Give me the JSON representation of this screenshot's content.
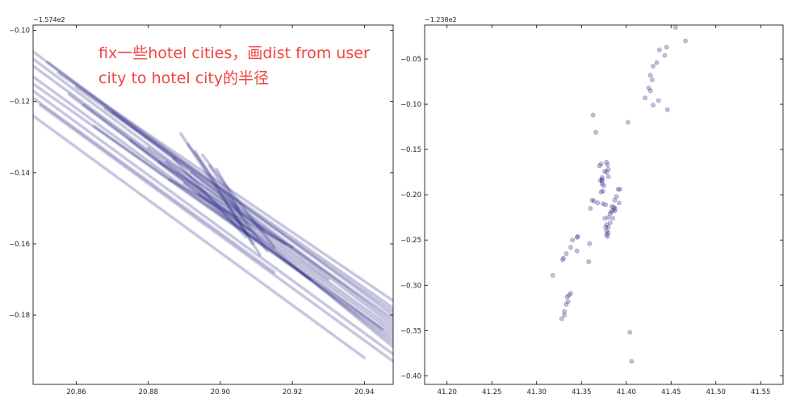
{
  "annotation": {
    "line1": "fix一些hotel cities，画dist from user",
    "line2": "city to hotel city的半径"
  },
  "chart_data": [
    {
      "type": "line",
      "title": "",
      "xlabel": "",
      "ylabel": "",
      "y_offset_label": "−1.574e2",
      "xlim": [
        20.848,
        20.948
      ],
      "ylim": [
        -0.1995,
        -0.0985
      ],
      "xticks": [
        20.86,
        20.88,
        20.9,
        20.92,
        20.94
      ],
      "xtick_labels": [
        "20.86",
        "20.88",
        "20.90",
        "20.92",
        "20.94"
      ],
      "yticks": [
        -0.1,
        -0.12,
        -0.14,
        -0.16,
        -0.18
      ],
      "ytick_labels": [
        "−0.10",
        "−0.12",
        "−0.14",
        "−0.16",
        "−0.18"
      ],
      "color": "#1c1c80",
      "grid": false,
      "description_note": "many faint dark-blue line segments trending downward",
      "series": [
        {
          "x": [
            20.848,
            20.948
          ],
          "y": [
            -0.106,
            -0.18
          ]
        },
        {
          "x": [
            20.848,
            20.948
          ],
          "y": [
            -0.11,
            -0.184
          ]
        },
        {
          "x": [
            20.848,
            20.948
          ],
          "y": [
            -0.113,
            -0.187
          ]
        },
        {
          "x": [
            20.848,
            20.948
          ],
          "y": [
            -0.117,
            -0.191
          ]
        },
        {
          "x": [
            20.85,
            20.948
          ],
          "y": [
            -0.121,
            -0.193
          ]
        },
        {
          "x": [
            20.848,
            20.94
          ],
          "y": [
            -0.124,
            -0.192
          ]
        },
        {
          "x": [
            20.855,
            20.948
          ],
          "y": [
            -0.112,
            -0.176
          ]
        },
        {
          "x": [
            20.86,
            20.948
          ],
          "y": [
            -0.116,
            -0.178
          ]
        },
        {
          "x": [
            20.848,
            20.93
          ],
          "y": [
            -0.108,
            -0.17
          ]
        },
        {
          "x": [
            20.852,
            20.948
          ],
          "y": [
            -0.109,
            -0.182
          ]
        },
        {
          "x": [
            20.87,
            20.948
          ],
          "y": [
            -0.123,
            -0.183
          ]
        },
        {
          "x": [
            20.848,
            20.925
          ],
          "y": [
            -0.115,
            -0.17
          ]
        },
        {
          "x": [
            20.865,
            20.948
          ],
          "y": [
            -0.127,
            -0.186
          ]
        },
        {
          "x": [
            20.88,
            20.948
          ],
          "y": [
            -0.133,
            -0.181
          ]
        },
        {
          "x": [
            20.875,
            20.948
          ],
          "y": [
            -0.131,
            -0.188
          ]
        },
        {
          "x": [
            20.848,
            20.915
          ],
          "y": [
            -0.119,
            -0.168
          ]
        },
        {
          "x": [
            20.885,
            20.948
          ],
          "y": [
            -0.137,
            -0.189
          ]
        },
        {
          "x": [
            20.858,
            20.945
          ],
          "y": [
            -0.118,
            -0.184
          ]
        },
        {
          "x": [
            20.862,
            20.948
          ],
          "y": [
            -0.121,
            -0.185
          ]
        },
        {
          "x": [
            20.868,
            20.948
          ],
          "y": [
            -0.122,
            -0.179
          ]
        },
        {
          "x": [
            20.889,
            20.911
          ],
          "y": [
            -0.129,
            -0.163
          ]
        },
        {
          "x": [
            20.891,
            20.913
          ],
          "y": [
            -0.132,
            -0.162
          ]
        },
        {
          "x": [
            20.893,
            20.909
          ],
          "y": [
            -0.134,
            -0.16
          ]
        },
        {
          "x": [
            20.887,
            20.907
          ],
          "y": [
            -0.136,
            -0.158
          ]
        },
        {
          "x": [
            20.895,
            20.915
          ],
          "y": [
            -0.135,
            -0.161
          ]
        },
        {
          "x": [
            20.897,
            20.906
          ],
          "y": [
            -0.138,
            -0.152
          ]
        },
        {
          "x": [
            20.899,
            20.905
          ],
          "y": [
            -0.139,
            -0.15
          ]
        },
        {
          "x": [
            20.892,
            20.912
          ],
          "y": [
            -0.14,
            -0.156
          ]
        },
        {
          "x": [
            20.89,
            20.91
          ],
          "y": [
            -0.143,
            -0.159
          ]
        },
        {
          "x": [
            20.894,
            20.908
          ],
          "y": [
            -0.146,
            -0.156
          ]
        },
        {
          "x": [
            20.883,
            20.918
          ],
          "y": [
            -0.137,
            -0.16
          ]
        },
        {
          "x": [
            20.886,
            20.92
          ],
          "y": [
            -0.142,
            -0.161
          ]
        }
      ]
    },
    {
      "type": "scatter",
      "title": "",
      "xlabel": "",
      "ylabel": "",
      "y_offset_label": "−1.238e2",
      "xlim": [
        41.175,
        41.575
      ],
      "ylim": [
        -0.4095,
        -0.0125
      ],
      "xticks": [
        41.2,
        41.25,
        41.3,
        41.35,
        41.4,
        41.45,
        41.5,
        41.55
      ],
      "xtick_labels": [
        "41.20",
        "41.25",
        "41.30",
        "41.35",
        "41.40",
        "41.45",
        "41.50",
        "41.55"
      ],
      "yticks": [
        -0.05,
        -0.1,
        -0.15,
        -0.2,
        -0.25,
        -0.3,
        -0.35,
        -0.4
      ],
      "ytick_labels": [
        "−0.05",
        "−0.10",
        "−0.15",
        "−0.20",
        "−0.25",
        "−0.30",
        "−0.35",
        "−0.40"
      ],
      "color": "#1c1c80",
      "grid": false,
      "points": [
        [
          41.455,
          -0.015
        ],
        [
          41.466,
          -0.03
        ],
        [
          41.445,
          -0.037
        ],
        [
          41.437,
          -0.04
        ],
        [
          41.443,
          -0.046
        ],
        [
          41.434,
          -0.054
        ],
        [
          41.43,
          -0.058
        ],
        [
          41.427,
          -0.068
        ],
        [
          41.429,
          -0.073
        ],
        [
          41.425,
          -0.082
        ],
        [
          41.427,
          -0.085
        ],
        [
          41.421,
          -0.093
        ],
        [
          41.436,
          -0.096
        ],
        [
          41.43,
          -0.101
        ],
        [
          41.446,
          -0.106
        ],
        [
          41.363,
          -0.112
        ],
        [
          41.402,
          -0.12
        ],
        [
          41.366,
          -0.131
        ],
        [
          41.378,
          -0.164
        ],
        [
          41.379,
          -0.167
        ],
        [
          41.372,
          -0.166
        ],
        [
          41.37,
          -0.168
        ],
        [
          41.38,
          -0.172
        ],
        [
          41.378,
          -0.175
        ],
        [
          41.376,
          -0.174
        ],
        [
          41.38,
          -0.18
        ],
        [
          41.373,
          -0.181
        ],
        [
          41.373,
          -0.183
        ],
        [
          41.373,
          -0.185
        ],
        [
          41.373,
          -0.188
        ],
        [
          41.371,
          -0.184
        ],
        [
          41.375,
          -0.19
        ],
        [
          41.374,
          -0.196
        ],
        [
          41.372,
          -0.197
        ],
        [
          41.391,
          -0.194
        ],
        [
          41.393,
          -0.194
        ],
        [
          41.389,
          -0.202
        ],
        [
          41.387,
          -0.206
        ],
        [
          41.362,
          -0.206
        ],
        [
          41.364,
          -0.207
        ],
        [
          41.368,
          -0.209
        ],
        [
          41.374,
          -0.21
        ],
        [
          41.377,
          -0.211
        ],
        [
          41.36,
          -0.215
        ],
        [
          41.392,
          -0.209
        ],
        [
          41.384,
          -0.213
        ],
        [
          41.386,
          -0.214
        ],
        [
          41.388,
          -0.215
        ],
        [
          41.385,
          -0.217
        ],
        [
          41.387,
          -0.218
        ],
        [
          41.383,
          -0.219
        ],
        [
          41.382,
          -0.221
        ],
        [
          41.38,
          -0.225
        ],
        [
          41.376,
          -0.226
        ],
        [
          41.385,
          -0.226
        ],
        [
          41.382,
          -0.231
        ],
        [
          41.378,
          -0.233
        ],
        [
          41.38,
          -0.236
        ],
        [
          41.377,
          -0.236
        ],
        [
          41.378,
          -0.24
        ],
        [
          41.38,
          -0.242
        ],
        [
          41.378,
          -0.244
        ],
        [
          41.379,
          -0.246
        ],
        [
          41.346,
          -0.246
        ],
        [
          41.345,
          -0.247
        ],
        [
          41.34,
          -0.25
        ],
        [
          41.359,
          -0.254
        ],
        [
          41.338,
          -0.258
        ],
        [
          41.345,
          -0.262
        ],
        [
          41.333,
          -0.265
        ],
        [
          41.33,
          -0.27
        ],
        [
          41.329,
          -0.272
        ],
        [
          41.358,
          -0.274
        ],
        [
          41.318,
          -0.289
        ],
        [
          41.338,
          -0.309
        ],
        [
          41.336,
          -0.311
        ],
        [
          41.334,
          -0.313
        ],
        [
          41.335,
          -0.318
        ],
        [
          41.333,
          -0.321
        ],
        [
          41.331,
          -0.329
        ],
        [
          41.331,
          -0.333
        ],
        [
          41.328,
          -0.337
        ],
        [
          41.404,
          -0.352
        ],
        [
          41.406,
          -0.384
        ]
      ]
    }
  ]
}
